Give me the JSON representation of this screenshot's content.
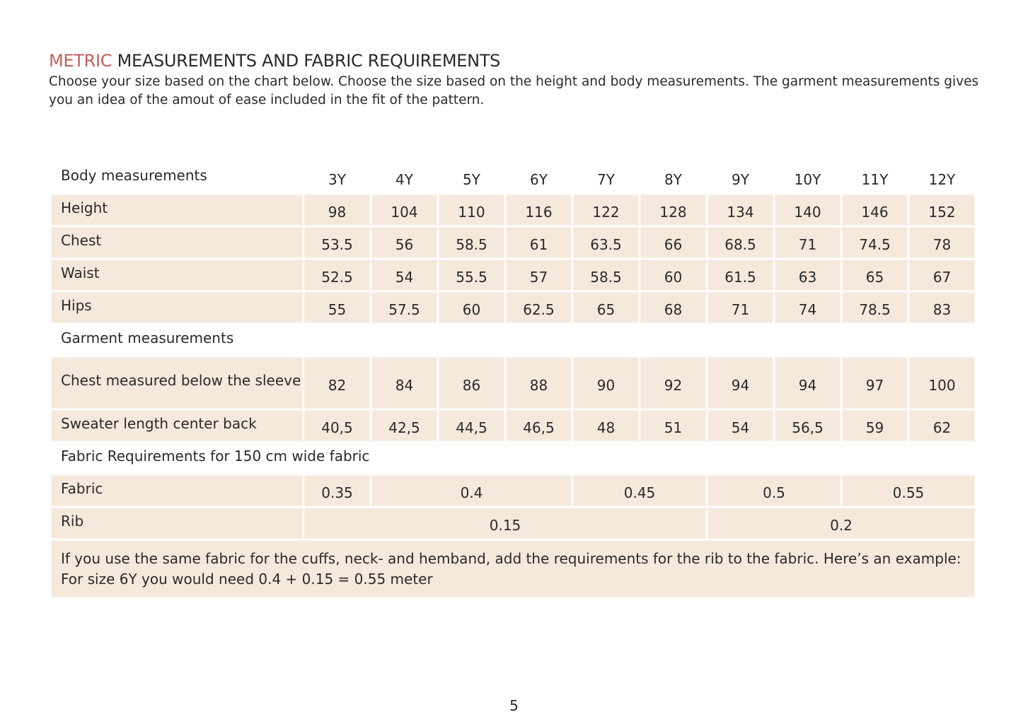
{
  "header": {
    "title_accent": "METRIC",
    "title_rest": "MEASUREMENTS AND FABRIC REQUIREMENTS",
    "intro": "Choose your size based on the chart below. Choose the size based on the height and body measurements. The garment measurements gives you an idea of the amout of ease included in the fit of the pattern."
  },
  "table": {
    "header": {
      "label": "Body measurements",
      "sizes": [
        "3Y",
        "4Y",
        "5Y",
        "6Y",
        "7Y",
        "8Y",
        "9Y",
        "10Y",
        "11Y",
        "12Y"
      ]
    },
    "body_rows": [
      {
        "label": "Height",
        "values": [
          "98",
          "104",
          "110",
          "116",
          "122",
          "128",
          "134",
          "140",
          "146",
          "152"
        ]
      },
      {
        "label": "Chest",
        "values": [
          "53.5",
          "56",
          "58.5",
          "61",
          "63.5",
          "66",
          "68.5",
          "71",
          "74.5",
          "78"
        ]
      },
      {
        "label": "Waist",
        "values": [
          "52.5",
          "54",
          "55.5",
          "57",
          "58.5",
          "60",
          "61.5",
          "63",
          "65",
          "67"
        ]
      },
      {
        "label": "Hips",
        "values": [
          "55",
          "57.5",
          "60",
          "62.5",
          "65",
          "68",
          "71",
          "74",
          "78.5",
          "83"
        ]
      }
    ],
    "garment_heading": "Garment measurements",
    "garment_rows": [
      {
        "label": "Chest measured below the sleeve",
        "values": [
          "82",
          "84",
          "86",
          "88",
          "90",
          "92",
          "94",
          "94",
          "97",
          "100"
        ]
      },
      {
        "label": "Sweater length center back",
        "values": [
          "40,5",
          "42,5",
          "44,5",
          "46,5",
          "48",
          "51",
          "54",
          "56,5",
          "59",
          "62"
        ]
      }
    ],
    "fabric_heading": "Fabric Requirements for 150 cm wide fabric",
    "fabric_rows": [
      {
        "label": "Fabric",
        "values": [
          "0.35",
          "0.4",
          "0.45",
          "0.5",
          "0.55"
        ]
      },
      {
        "label": "Rib",
        "values": [
          "0.15",
          "0.2"
        ]
      }
    ],
    "note": "If you use the same fabric for the cuffs, neck- and hemband, add the requirements for the rib to the fabric. Here’s an example: For size 6Y you would need 0.4 + 0.15 = 0.55 meter"
  },
  "footer": {
    "page": "5"
  }
}
